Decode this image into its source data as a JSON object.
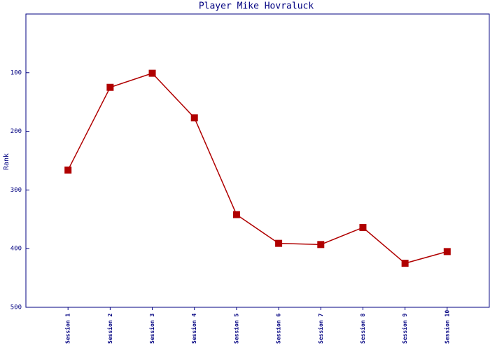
{
  "chart_data": {
    "type": "line",
    "title": "Player Mike Hovraluck",
    "y_label": "Rank",
    "categories": [
      "Session 1",
      "Session 2",
      "Session 3",
      "Session 4",
      "Session 5",
      "Session 6",
      "Session 7",
      "Session 8",
      "Session 9",
      "Session 10"
    ],
    "series": [
      {
        "color": "#b00000",
        "values": [
          266,
          125,
          101,
          177,
          342,
          391,
          393,
          364,
          425,
          405
        ]
      }
    ],
    "ylim": [
      500,
      0
    ],
    "yticks": [
      100,
      200,
      300,
      400,
      500
    ],
    "axis_color": "#000080"
  }
}
